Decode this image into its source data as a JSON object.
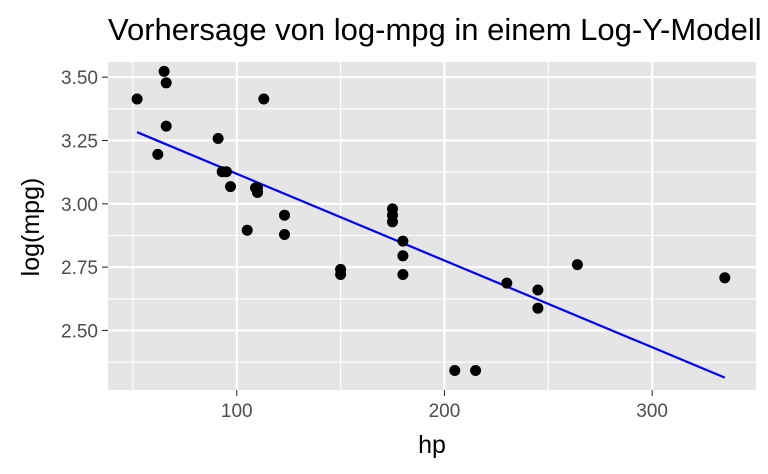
{
  "chart_data": {
    "type": "scatter",
    "title": "Vorhersage von log-mpg in einem Log-Y-Modell",
    "xlabel": "hp",
    "ylabel": "log(mpg)",
    "xlim": [
      38,
      350
    ],
    "ylim": [
      2.265,
      3.56
    ],
    "x_ticks": [
      100,
      200,
      300
    ],
    "x_tick_labels": [
      "100",
      "200",
      "300"
    ],
    "y_ticks": [
      2.5,
      2.75,
      3.0,
      3.25,
      3.5
    ],
    "y_tick_labels": [
      "2.50",
      "2.75",
      "3.00",
      "3.25",
      "3.50"
    ],
    "x_minor_ticks": [
      50,
      150,
      250
    ],
    "y_minor_ticks": [
      2.375,
      2.625,
      2.875,
      3.125,
      3.375
    ],
    "grid": true,
    "panel_background": "#e5e5e5",
    "grid_color": "#ffffff",
    "point_color": "#000000",
    "line_color": "#0000ff",
    "series": [
      {
        "kind": "points",
        "x": [
          52,
          62,
          65,
          66,
          66,
          91,
          93,
          95,
          97,
          105,
          109,
          110,
          110,
          110,
          113,
          123,
          123,
          150,
          150,
          175,
          175,
          175,
          180,
          180,
          180,
          205,
          215,
          230,
          245,
          245,
          264,
          335
        ],
        "y": [
          3.414,
          3.195,
          3.523,
          3.307,
          3.478,
          3.258,
          3.127,
          3.127,
          3.068,
          2.896,
          3.063,
          3.045,
          3.045,
          3.063,
          3.414,
          2.955,
          2.879,
          2.721,
          2.741,
          2.98,
          2.955,
          2.929,
          2.853,
          2.795,
          2.721,
          2.342,
          2.342,
          2.687,
          2.588,
          2.66,
          2.76,
          2.708
        ]
      },
      {
        "kind": "line",
        "x": [
          52,
          335
        ],
        "y": [
          3.283,
          2.314
        ]
      }
    ]
  }
}
